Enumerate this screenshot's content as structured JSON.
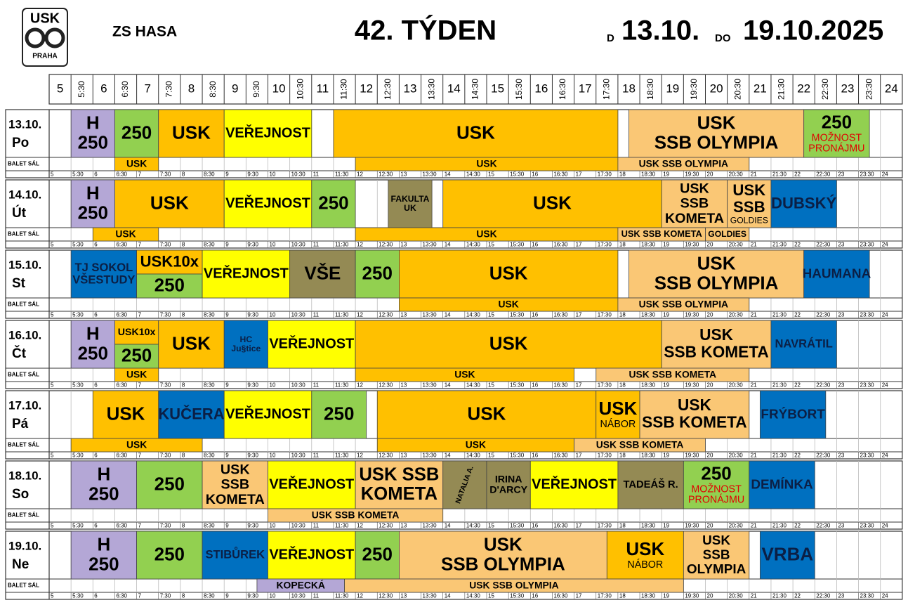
{
  "header": {
    "logo": {
      "top": "USK",
      "bottom": "PRAHA"
    },
    "place": "ZS HASA",
    "week": "42. TÝDEN",
    "from_word": "D",
    "from": "13.10.",
    "to_word": "DO",
    "to": "19.10.2025"
  },
  "times": [
    "5",
    "5:30",
    "6",
    "6:30",
    "7",
    "7:30",
    "8",
    "8:30",
    "9",
    "9:30",
    "10",
    "10:30",
    "11",
    "11:30",
    "12",
    "12:30",
    "13",
    "13:30",
    "14",
    "14:30",
    "15",
    "15:30",
    "16",
    "16:30",
    "17",
    "17:30",
    "18",
    "18:30",
    "19",
    "19:30",
    "20",
    "20:30",
    "21",
    "21:30",
    "22",
    "22:30",
    "23",
    "23:30",
    "24"
  ],
  "balet_label": "BALET SÁL",
  "days": [
    {
      "date": "13.10.",
      "day": "Po",
      "blocks": [
        {
          "start": 5.5,
          "end": 6.5,
          "lines": [
            "H",
            "250"
          ],
          "color": "#b4a7d6"
        },
        {
          "start": 6.5,
          "end": 7.5,
          "lines": [
            "250"
          ],
          "color": "#92d050"
        },
        {
          "start": 7.5,
          "end": 9,
          "lines": [
            "USK"
          ],
          "color": "#ffc000"
        },
        {
          "start": 9,
          "end": 11,
          "lines": [
            "VEŘEJNOST"
          ],
          "color": "#ffff00"
        },
        {
          "start": 11.5,
          "end": 18,
          "lines": [
            "USK"
          ],
          "color": "#ffc000"
        },
        {
          "start": 18.25,
          "end": 22.25,
          "lines": [
            "USK",
            "SSB OLYMPIA"
          ],
          "color": "#fac775"
        },
        {
          "start": 22.25,
          "end": 23.75,
          "lines": [
            "250"
          ],
          "notes": [
            "MOŽNOST",
            "PRONÁJMU"
          ],
          "color": "#92d050"
        }
      ],
      "balet": [
        {
          "start": 6.5,
          "end": 7.5,
          "lines": [
            "USK"
          ],
          "color": "#ffc000"
        },
        {
          "start": 12,
          "end": 18,
          "lines": [
            "USK"
          ],
          "color": "#ffc000"
        },
        {
          "start": 18,
          "end": 21,
          "lines": [
            "USK SSB OLYMPIA"
          ],
          "color": "#fac775"
        }
      ]
    },
    {
      "date": "14.10.",
      "day": "Út",
      "blocks": [
        {
          "start": 5.5,
          "end": 6.5,
          "lines": [
            "H",
            "250"
          ],
          "color": "#b4a7d6"
        },
        {
          "start": 6.5,
          "end": 9,
          "lines": [
            "USK"
          ],
          "color": "#ffc000"
        },
        {
          "start": 9,
          "end": 11,
          "lines": [
            "VEŘEJNOST"
          ],
          "color": "#ffff00"
        },
        {
          "start": 11,
          "end": 12,
          "lines": [
            "250"
          ],
          "color": "#92d050"
        },
        {
          "start": 12.75,
          "end": 13.75,
          "lines": [
            "FAKULTA",
            "UK"
          ],
          "color": "#948a54"
        },
        {
          "start": 14,
          "end": 19,
          "lines": [
            "USK"
          ],
          "color": "#ffc000"
        },
        {
          "start": 19,
          "end": 20.5,
          "lines": [
            "USK",
            "SSB",
            "KOMETA"
          ],
          "color": "#fac775"
        },
        {
          "start": 20.5,
          "end": 21.5,
          "lines": [
            "USK",
            "SSB"
          ],
          "notes": [
            "GOLDIES"
          ],
          "color": "#fac775"
        },
        {
          "start": 21.5,
          "end": 23,
          "lines": [
            "DUBSKÝ"
          ],
          "color": "#0070c0"
        }
      ],
      "balet": [
        {
          "start": 6,
          "end": 7.5,
          "lines": [
            "USK"
          ],
          "color": "#ffc000"
        },
        {
          "start": 12,
          "end": 18,
          "lines": [
            "USK"
          ],
          "color": "#ffc000"
        },
        {
          "start": 18,
          "end": 20,
          "lines": [
            "USK SSB KOMETA"
          ],
          "color": "#fac775"
        },
        {
          "start": 20,
          "end": 21,
          "lines": [
            "GOLDIES"
          ],
          "color": "#fac775"
        }
      ]
    },
    {
      "date": "15.10.",
      "day": "St",
      "blocks": [
        {
          "start": 5.5,
          "end": 7,
          "lines": [
            "TJ SOKOL",
            "VŠESTUDY"
          ],
          "color": "#0070c0"
        },
        {
          "start": 7,
          "end": 8.5,
          "lines": [
            "USK10x"
          ],
          "color": "#ffc000",
          "half": "top"
        },
        {
          "start": 7,
          "end": 8.5,
          "lines": [
            "250"
          ],
          "color": "#92d050",
          "half": "bottom"
        },
        {
          "start": 8.5,
          "end": 10.5,
          "lines": [
            "VEŘEJNOST"
          ],
          "color": "#ffff00"
        },
        {
          "start": 10.5,
          "end": 12,
          "lines": [
            "VŠE"
          ],
          "color": "#948a54"
        },
        {
          "start": 12,
          "end": 13,
          "lines": [
            "250"
          ],
          "color": "#92d050"
        },
        {
          "start": 13,
          "end": 18,
          "lines": [
            "USK"
          ],
          "color": "#ffc000"
        },
        {
          "start": 18.25,
          "end": 22.25,
          "lines": [
            "USK",
            "SSB OLYMPIA"
          ],
          "color": "#fac775"
        },
        {
          "start": 22.25,
          "end": 23.75,
          "lines": [
            "HAUMANA"
          ],
          "color": "#0070c0"
        }
      ],
      "balet": [
        {
          "start": 13,
          "end": 18,
          "lines": [
            "USK"
          ],
          "color": "#ffc000"
        },
        {
          "start": 18,
          "end": 21,
          "lines": [
            "USK SSB OLYMPIA"
          ],
          "color": "#fac775"
        }
      ]
    },
    {
      "date": "16.10.",
      "day": "Čt",
      "blocks": [
        {
          "start": 5.5,
          "end": 6.5,
          "lines": [
            "H",
            "250"
          ],
          "color": "#b4a7d6"
        },
        {
          "start": 6.5,
          "end": 7.5,
          "lines": [
            "USK10x"
          ],
          "color": "#ffc000",
          "half": "top"
        },
        {
          "start": 6.5,
          "end": 7.5,
          "lines": [
            "250"
          ],
          "color": "#92d050",
          "half": "bottom"
        },
        {
          "start": 7.5,
          "end": 9,
          "lines": [
            "USK"
          ],
          "color": "#ffc000"
        },
        {
          "start": 9,
          "end": 10,
          "lines": [
            "HC",
            "Ju§tice"
          ],
          "color": "#0070c0"
        },
        {
          "start": 10,
          "end": 12,
          "lines": [
            "VEŘEJNOST"
          ],
          "color": "#ffff00"
        },
        {
          "start": 12,
          "end": 19,
          "lines": [
            "USK"
          ],
          "color": "#ffc000"
        },
        {
          "start": 19,
          "end": 21.5,
          "lines": [
            "USK",
            "SSB KOMETA"
          ],
          "color": "#fac775"
        },
        {
          "start": 21.5,
          "end": 23,
          "lines": [
            "NAVRÁTIL"
          ],
          "color": "#0070c0"
        }
      ],
      "balet": [
        {
          "start": 6.5,
          "end": 7.5,
          "lines": [
            "USK"
          ],
          "color": "#ffc000"
        },
        {
          "start": 12,
          "end": 17,
          "lines": [
            "USK"
          ],
          "color": "#ffc000"
        },
        {
          "start": 17.5,
          "end": 21,
          "lines": [
            "USK SSB KOMETA"
          ],
          "color": "#fac775"
        }
      ]
    },
    {
      "date": "17.10.",
      "day": "Pá",
      "blocks": [
        {
          "start": 6,
          "end": 7.5,
          "lines": [
            "USK"
          ],
          "color": "#ffc000"
        },
        {
          "start": 7.5,
          "end": 9,
          "lines": [
            "KUČERA"
          ],
          "color": "#0070c0"
        },
        {
          "start": 9,
          "end": 11,
          "lines": [
            "VEŘEJNOST"
          ],
          "color": "#ffff00"
        },
        {
          "start": 11,
          "end": 12.25,
          "lines": [
            "250"
          ],
          "color": "#92d050"
        },
        {
          "start": 12.5,
          "end": 17.5,
          "lines": [
            "USK"
          ],
          "color": "#ffc000"
        },
        {
          "start": 17.5,
          "end": 18.5,
          "lines": [
            "USK"
          ],
          "notes": [
            "NÁBOR"
          ],
          "color": "#ffc000"
        },
        {
          "start": 18.5,
          "end": 21,
          "lines": [
            "USK",
            "SSB KOMETA"
          ],
          "color": "#fac775"
        },
        {
          "start": 21.25,
          "end": 22.75,
          "lines": [
            "FRÝBORT"
          ],
          "color": "#0070c0"
        }
      ],
      "balet": [
        {
          "start": 5.5,
          "end": 8.5,
          "lines": [
            "USK"
          ],
          "color": "#ffc000"
        },
        {
          "start": 12.5,
          "end": 17,
          "lines": [
            "USK"
          ],
          "color": "#ffc000"
        },
        {
          "start": 17,
          "end": 20,
          "lines": [
            "USK SSB KOMETA"
          ],
          "color": "#fac775"
        }
      ]
    },
    {
      "date": "18.10.",
      "day": "So",
      "blocks": [
        {
          "start": 5.5,
          "end": 7,
          "lines": [
            "H",
            "250"
          ],
          "color": "#b4a7d6"
        },
        {
          "start": 7,
          "end": 8.5,
          "lines": [
            "250"
          ],
          "color": "#92d050"
        },
        {
          "start": 8.5,
          "end": 10,
          "lines": [
            "USK",
            "SSB",
            "KOMETA"
          ],
          "color": "#fac775"
        },
        {
          "start": 10,
          "end": 12,
          "lines": [
            "VEŘEJNOST"
          ],
          "color": "#ffff00"
        },
        {
          "start": 12,
          "end": 14,
          "lines": [
            "USK SSB",
            "KOMETA"
          ],
          "color": "#fac775"
        },
        {
          "start": 14,
          "end": 15,
          "lines": [
            "NATALIA A."
          ],
          "color": "#948a54",
          "rotate": true
        },
        {
          "start": 15,
          "end": 16,
          "lines": [
            "IRINA",
            "D'ARCY"
          ],
          "color": "#948a54"
        },
        {
          "start": 16,
          "end": 18,
          "lines": [
            "VEŘEJNOST"
          ],
          "color": "#ffff00"
        },
        {
          "start": 18,
          "end": 19.5,
          "lines": [
            "TADEÁŠ R."
          ],
          "color": "#948a54"
        },
        {
          "start": 19.5,
          "end": 21,
          "lines": [
            "250"
          ],
          "notes": [
            "MOŽNOST",
            "PRONÁJMU"
          ],
          "color": "#92d050"
        },
        {
          "start": 21,
          "end": 22.5,
          "lines": [
            "DEMÍNKA"
          ],
          "color": "#0070c0"
        }
      ],
      "balet": [
        {
          "start": 10,
          "end": 14,
          "lines": [
            "USK SSB KOMETA"
          ],
          "color": "#fac775"
        }
      ]
    },
    {
      "date": "19.10.",
      "day": "Ne",
      "blocks": [
        {
          "start": 5.5,
          "end": 7,
          "lines": [
            "H",
            "250"
          ],
          "color": "#b4a7d6"
        },
        {
          "start": 7,
          "end": 8.5,
          "lines": [
            "250"
          ],
          "color": "#92d050"
        },
        {
          "start": 8.5,
          "end": 10,
          "lines": [
            "STIBŮREK"
          ],
          "color": "#0070c0"
        },
        {
          "start": 10,
          "end": 12,
          "lines": [
            "VEŘEJNOST"
          ],
          "color": "#ffff00"
        },
        {
          "start": 12,
          "end": 13,
          "lines": [
            "250"
          ],
          "color": "#92d050"
        },
        {
          "start": 13,
          "end": 17.75,
          "lines": [
            "USK",
            "SSB OLYMPIA"
          ],
          "color": "#fac775"
        },
        {
          "start": 17.75,
          "end": 19.5,
          "lines": [
            "USK"
          ],
          "notes": [
            "NÁBOR"
          ],
          "color": "#ffc000"
        },
        {
          "start": 19.5,
          "end": 21,
          "lines": [
            "USK",
            "SSB",
            "OLYMPIA"
          ],
          "color": "#fac775"
        },
        {
          "start": 21.25,
          "end": 22.5,
          "lines": [
            "VRBA"
          ],
          "color": "#0070c0"
        }
      ],
      "balet": [
        {
          "start": 9.75,
          "end": 11.75,
          "lines": [
            "KOPECKÁ"
          ],
          "color": "#b4a7d6"
        },
        {
          "start": 11.75,
          "end": 19.5,
          "lines": [
            "USK SSB OLYMPIA"
          ],
          "color": "#fac775"
        }
      ]
    }
  ]
}
